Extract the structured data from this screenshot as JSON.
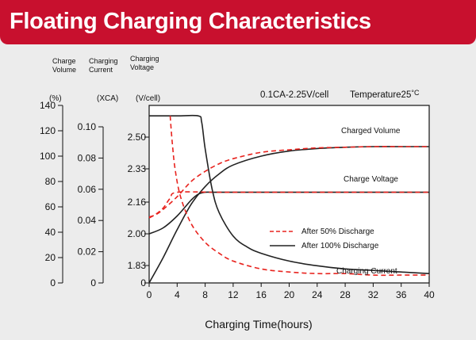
{
  "header": {
    "title": "Floating Charging Characteristics"
  },
  "colors": {
    "banner": "#c8102e",
    "discharge50": "#e8231e",
    "discharge100": "#222222",
    "background": "#ececec"
  },
  "chart_data": {
    "type": "line",
    "subtitle_left": "0.1CA-2.25V/cell",
    "subtitle_right": "Temperature25",
    "subtitle_unit": "°C",
    "xlabel": "Charging Time(hours)",
    "xlim": [
      0,
      40
    ],
    "xticks": [
      "0",
      "4",
      "8",
      "12",
      "16",
      "20",
      "24",
      "28",
      "32",
      "36",
      "40"
    ],
    "axes": {
      "volume": {
        "name": "Charge Volume",
        "unit": "(%)",
        "ticks": [
          "0",
          "20",
          "40",
          "60",
          "80",
          "100",
          "120",
          "140"
        ],
        "range": [
          0,
          140
        ]
      },
      "current": {
        "name": "Charging Current",
        "unit": "(XCA)",
        "ticks": [
          "0",
          "0.02",
          "0.04",
          "0.06",
          "0.08",
          "0.10"
        ],
        "range": [
          0,
          0.12
        ]
      },
      "voltage": {
        "name": "Charging Voltage",
        "unit": "(V/cell)",
        "ticks": [
          "0",
          "1.83",
          "2.00",
          "2.16",
          "2.33",
          "2.50"
        ]
      }
    },
    "legend": {
      "placement": "center-right",
      "entries": [
        "After 50% Discharge",
        "After 100% Discharge"
      ]
    },
    "series_labels": [
      "Charged Volume",
      "Charge Voltage",
      "Charging Current"
    ],
    "series": [
      {
        "legend": "After 100% Discharge",
        "quantity": "volume",
        "axis": "volume",
        "x": [
          0,
          2,
          4,
          6,
          8,
          10,
          12,
          16,
          20,
          24,
          28,
          32,
          36,
          40
        ],
        "values": [
          0,
          20,
          42,
          62,
          76,
          86,
          93,
          100,
          104,
          106,
          107,
          107.5,
          107.5,
          107.5
        ]
      },
      {
        "legend": "After 50% Discharge",
        "quantity": "volume",
        "axis": "volume",
        "x": [
          0,
          1,
          2,
          4,
          6,
          8,
          10,
          12,
          16,
          20,
          24,
          28,
          32,
          36,
          40
        ],
        "values": [
          52,
          54,
          58,
          68,
          80,
          88,
          94,
          98,
          103,
          105,
          106.5,
          107,
          107.5,
          107.5,
          107.5
        ]
      },
      {
        "legend": "After 100% Discharge",
        "quantity": "voltage",
        "axis": "voltage",
        "x": [
          0,
          2,
          4,
          6,
          7,
          8,
          10,
          20,
          30,
          40
        ],
        "values": [
          2.0,
          2.03,
          2.09,
          2.17,
          2.2,
          2.21,
          2.21,
          2.21,
          2.21,
          2.21
        ]
      },
      {
        "legend": "After 50% Discharge",
        "quantity": "voltage",
        "axis": "voltage",
        "x": [
          0,
          1,
          2,
          3,
          4,
          10,
          20,
          30,
          40
        ],
        "values": [
          2.08,
          2.1,
          2.13,
          2.18,
          2.21,
          2.21,
          2.21,
          2.21,
          2.21
        ]
      },
      {
        "legend": "After 100% Discharge",
        "quantity": "current",
        "axis": "current",
        "x": [
          0,
          4,
          7,
          7.5,
          8,
          9,
          10,
          12,
          14,
          16,
          20,
          24,
          28,
          32,
          36,
          40
        ],
        "values": [
          0.107,
          0.107,
          0.107,
          0.103,
          0.086,
          0.06,
          0.045,
          0.03,
          0.023,
          0.019,
          0.014,
          0.011,
          0.009,
          0.008,
          0.007,
          0.006
        ]
      },
      {
        "legend": "After 50% Discharge",
        "quantity": "current",
        "axis": "current",
        "x": [
          3,
          3.3,
          3.7,
          4.5,
          6,
          8,
          10,
          12,
          16,
          20,
          24,
          28,
          32,
          36,
          40
        ],
        "values": [
          0.107,
          0.09,
          0.073,
          0.055,
          0.038,
          0.026,
          0.019,
          0.014,
          0.009,
          0.007,
          0.006,
          0.006,
          0.005,
          0.005,
          0.005
        ]
      }
    ]
  }
}
